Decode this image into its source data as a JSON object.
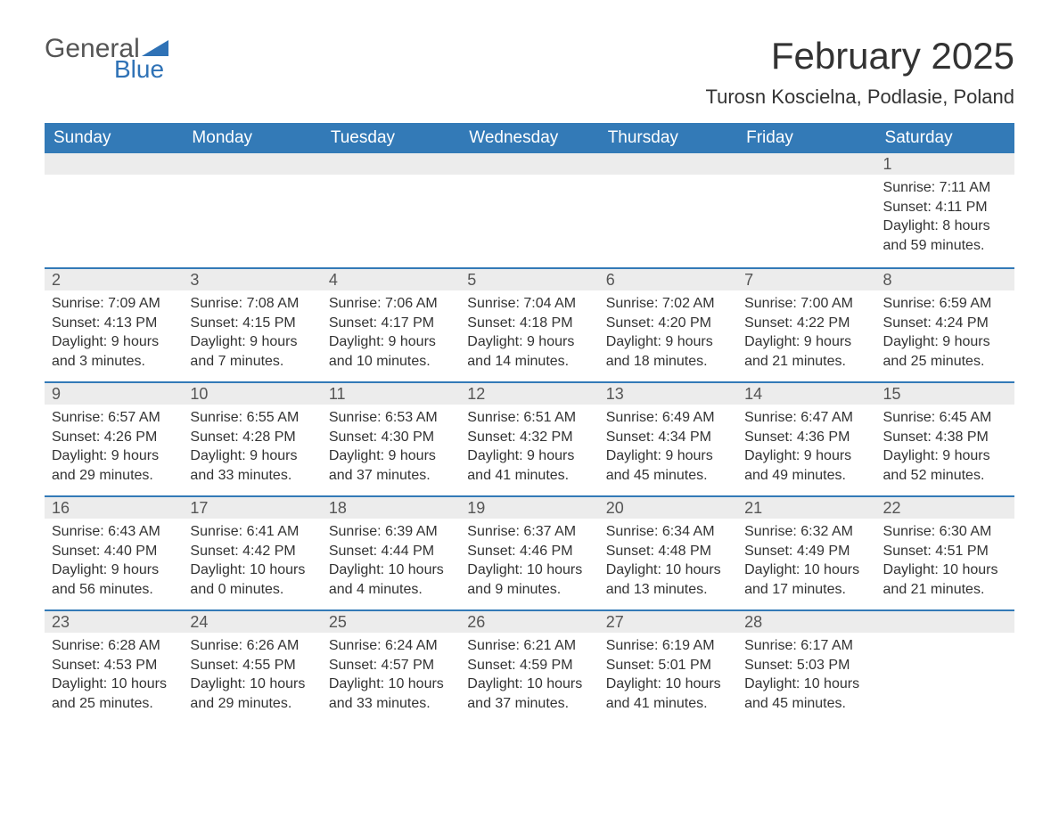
{
  "logo": {
    "text_general": "General",
    "text_blue": "Blue",
    "flag_color": "#2f72b6"
  },
  "title": "February 2025",
  "location": "Turosn Koscielna, Podlasie, Poland",
  "colors": {
    "header_bg": "#337ab7",
    "header_text": "#ffffff",
    "band_bg": "#ececec",
    "rule": "#337ab7",
    "body_text": "#333333"
  },
  "weekdays": [
    "Sunday",
    "Monday",
    "Tuesday",
    "Wednesday",
    "Thursday",
    "Friday",
    "Saturday"
  ],
  "weeks": [
    [
      null,
      null,
      null,
      null,
      null,
      null,
      {
        "n": "1",
        "sunrise": "Sunrise: 7:11 AM",
        "sunset": "Sunset: 4:11 PM",
        "daylight": "Daylight: 8 hours and 59 minutes."
      }
    ],
    [
      {
        "n": "2",
        "sunrise": "Sunrise: 7:09 AM",
        "sunset": "Sunset: 4:13 PM",
        "daylight": "Daylight: 9 hours and 3 minutes."
      },
      {
        "n": "3",
        "sunrise": "Sunrise: 7:08 AM",
        "sunset": "Sunset: 4:15 PM",
        "daylight": "Daylight: 9 hours and 7 minutes."
      },
      {
        "n": "4",
        "sunrise": "Sunrise: 7:06 AM",
        "sunset": "Sunset: 4:17 PM",
        "daylight": "Daylight: 9 hours and 10 minutes."
      },
      {
        "n": "5",
        "sunrise": "Sunrise: 7:04 AM",
        "sunset": "Sunset: 4:18 PM",
        "daylight": "Daylight: 9 hours and 14 minutes."
      },
      {
        "n": "6",
        "sunrise": "Sunrise: 7:02 AM",
        "sunset": "Sunset: 4:20 PM",
        "daylight": "Daylight: 9 hours and 18 minutes."
      },
      {
        "n": "7",
        "sunrise": "Sunrise: 7:00 AM",
        "sunset": "Sunset: 4:22 PM",
        "daylight": "Daylight: 9 hours and 21 minutes."
      },
      {
        "n": "8",
        "sunrise": "Sunrise: 6:59 AM",
        "sunset": "Sunset: 4:24 PM",
        "daylight": "Daylight: 9 hours and 25 minutes."
      }
    ],
    [
      {
        "n": "9",
        "sunrise": "Sunrise: 6:57 AM",
        "sunset": "Sunset: 4:26 PM",
        "daylight": "Daylight: 9 hours and 29 minutes."
      },
      {
        "n": "10",
        "sunrise": "Sunrise: 6:55 AM",
        "sunset": "Sunset: 4:28 PM",
        "daylight": "Daylight: 9 hours and 33 minutes."
      },
      {
        "n": "11",
        "sunrise": "Sunrise: 6:53 AM",
        "sunset": "Sunset: 4:30 PM",
        "daylight": "Daylight: 9 hours and 37 minutes."
      },
      {
        "n": "12",
        "sunrise": "Sunrise: 6:51 AM",
        "sunset": "Sunset: 4:32 PM",
        "daylight": "Daylight: 9 hours and 41 minutes."
      },
      {
        "n": "13",
        "sunrise": "Sunrise: 6:49 AM",
        "sunset": "Sunset: 4:34 PM",
        "daylight": "Daylight: 9 hours and 45 minutes."
      },
      {
        "n": "14",
        "sunrise": "Sunrise: 6:47 AM",
        "sunset": "Sunset: 4:36 PM",
        "daylight": "Daylight: 9 hours and 49 minutes."
      },
      {
        "n": "15",
        "sunrise": "Sunrise: 6:45 AM",
        "sunset": "Sunset: 4:38 PM",
        "daylight": "Daylight: 9 hours and 52 minutes."
      }
    ],
    [
      {
        "n": "16",
        "sunrise": "Sunrise: 6:43 AM",
        "sunset": "Sunset: 4:40 PM",
        "daylight": "Daylight: 9 hours and 56 minutes."
      },
      {
        "n": "17",
        "sunrise": "Sunrise: 6:41 AM",
        "sunset": "Sunset: 4:42 PM",
        "daylight": "Daylight: 10 hours and 0 minutes."
      },
      {
        "n": "18",
        "sunrise": "Sunrise: 6:39 AM",
        "sunset": "Sunset: 4:44 PM",
        "daylight": "Daylight: 10 hours and 4 minutes."
      },
      {
        "n": "19",
        "sunrise": "Sunrise: 6:37 AM",
        "sunset": "Sunset: 4:46 PM",
        "daylight": "Daylight: 10 hours and 9 minutes."
      },
      {
        "n": "20",
        "sunrise": "Sunrise: 6:34 AM",
        "sunset": "Sunset: 4:48 PM",
        "daylight": "Daylight: 10 hours and 13 minutes."
      },
      {
        "n": "21",
        "sunrise": "Sunrise: 6:32 AM",
        "sunset": "Sunset: 4:49 PM",
        "daylight": "Daylight: 10 hours and 17 minutes."
      },
      {
        "n": "22",
        "sunrise": "Sunrise: 6:30 AM",
        "sunset": "Sunset: 4:51 PM",
        "daylight": "Daylight: 10 hours and 21 minutes."
      }
    ],
    [
      {
        "n": "23",
        "sunrise": "Sunrise: 6:28 AM",
        "sunset": "Sunset: 4:53 PM",
        "daylight": "Daylight: 10 hours and 25 minutes."
      },
      {
        "n": "24",
        "sunrise": "Sunrise: 6:26 AM",
        "sunset": "Sunset: 4:55 PM",
        "daylight": "Daylight: 10 hours and 29 minutes."
      },
      {
        "n": "25",
        "sunrise": "Sunrise: 6:24 AM",
        "sunset": "Sunset: 4:57 PM",
        "daylight": "Daylight: 10 hours and 33 minutes."
      },
      {
        "n": "26",
        "sunrise": "Sunrise: 6:21 AM",
        "sunset": "Sunset: 4:59 PM",
        "daylight": "Daylight: 10 hours and 37 minutes."
      },
      {
        "n": "27",
        "sunrise": "Sunrise: 6:19 AM",
        "sunset": "Sunset: 5:01 PM",
        "daylight": "Daylight: 10 hours and 41 minutes."
      },
      {
        "n": "28",
        "sunrise": "Sunrise: 6:17 AM",
        "sunset": "Sunset: 5:03 PM",
        "daylight": "Daylight: 10 hours and 45 minutes."
      },
      null
    ]
  ]
}
